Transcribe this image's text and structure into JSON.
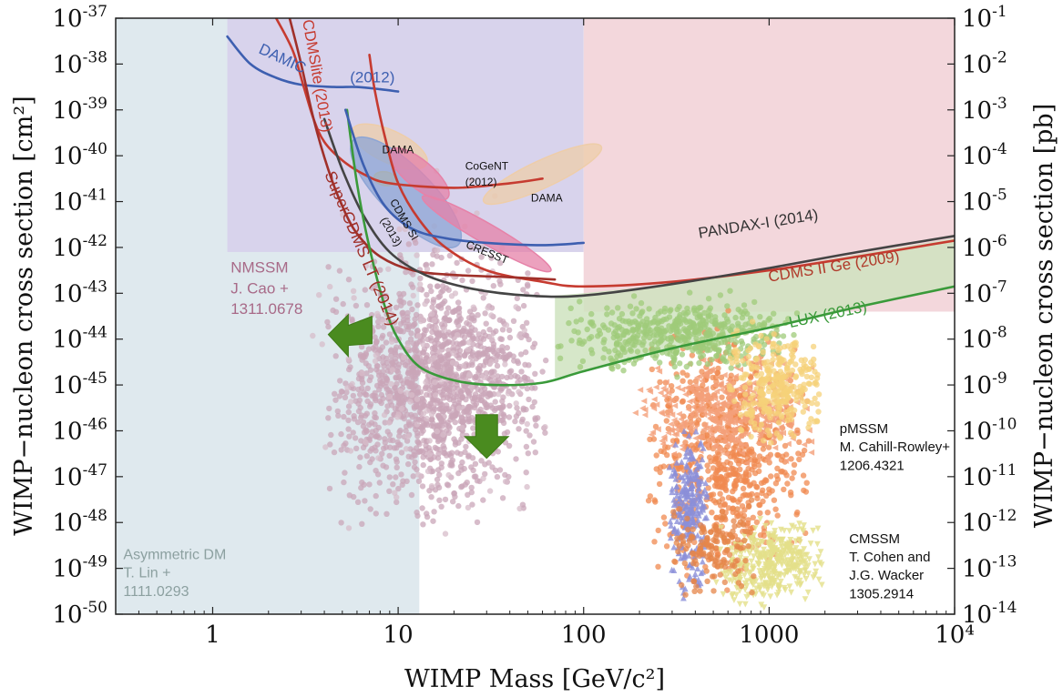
{
  "chart_data": {
    "type": "scatter",
    "xlabel": "WIMP Mass [GeV/c²]",
    "ylabel_left": "WIMP−nucleon cross section [cm²]",
    "ylabel_right": "WIMP−nucleon cross section [pb]",
    "x_scale": "log",
    "y_scale": "log",
    "xlim": [
      0.3,
      10000
    ],
    "ylim_cm2": [
      1e-50,
      1e-37
    ],
    "ylim_pb": [
      1e-14,
      0.1
    ],
    "x_ticks": [
      1,
      10,
      100,
      1000,
      10000
    ],
    "x_tick_labels": [
      "1",
      "10",
      "100",
      "1000",
      "10⁴"
    ],
    "y_ticks_left_exp": [
      -37,
      -38,
      -39,
      -40,
      -41,
      -42,
      -43,
      -44,
      -45,
      -46,
      -47,
      -48,
      -49,
      -50
    ],
    "y_ticks_right_exp": [
      -1,
      -2,
      -3,
      -4,
      -5,
      -6,
      -7,
      -8,
      -9,
      -10,
      -11,
      -12,
      -13,
      -14
    ],
    "tick_base": "10",
    "regions": [
      {
        "name": "asymmetric-dm-region",
        "color": "#dfe9ee",
        "x": [
          0.3,
          13
        ],
        "y_exp": [
          -50,
          -37
        ]
      },
      {
        "name": "excluded-low-mass-region",
        "color": "#d8d3ec",
        "x": [
          1.2,
          100
        ],
        "y_exp": [
          -42.1,
          -37
        ]
      },
      {
        "name": "excluded-high-mass-region",
        "color": "#f3d7dc",
        "x": [
          100,
          10000
        ],
        "y_exp": [
          -43.4,
          -37
        ]
      }
    ],
    "limit_curves": [
      {
        "name": "DAMIC (2012)",
        "color": "#3d5fb0",
        "points": [
          [
            1.2,
            -37.4
          ],
          [
            1.6,
            -38.0
          ],
          [
            2.2,
            -38.3
          ],
          [
            3,
            -38.45
          ],
          [
            4.5,
            -38.5
          ],
          [
            6,
            -38.5
          ],
          [
            8,
            -38.55
          ],
          [
            10,
            -38.6
          ]
        ]
      },
      {
        "name": "CDMSlite (2013)",
        "color": "#c63b30",
        "points": [
          [
            2.2,
            -37.0
          ],
          [
            2.7,
            -37.7
          ],
          [
            3.1,
            -38.5
          ],
          [
            3.5,
            -39.2
          ],
          [
            4,
            -39.7
          ],
          [
            5,
            -40.1
          ],
          [
            6.5,
            -40.4
          ],
          [
            9,
            -40.6
          ],
          [
            20,
            -40.7
          ],
          [
            40,
            -40.6
          ],
          [
            60,
            -40.5
          ]
        ]
      },
      {
        "name": "CDMS II Ge (2009)",
        "color": "#c63b30",
        "points": [
          [
            7,
            -37.8
          ],
          [
            7.5,
            -38.6
          ],
          [
            8.5,
            -39.6
          ],
          [
            10,
            -40.6
          ],
          [
            13,
            -41.4
          ],
          [
            18,
            -42.0
          ],
          [
            30,
            -42.5
          ],
          [
            60,
            -42.75
          ],
          [
            100,
            -42.85
          ],
          [
            300,
            -42.75
          ],
          [
            1000,
            -42.5
          ],
          [
            3000,
            -42.2
          ],
          [
            10000,
            -41.85
          ]
        ]
      },
      {
        "name": "SuperCDMS LT (2014)",
        "color": "#a0302a",
        "points": [
          [
            2.6,
            -37.0
          ],
          [
            3,
            -38.0
          ],
          [
            3.5,
            -39.2
          ],
          [
            4.2,
            -40.3
          ],
          [
            5,
            -41.1
          ],
          [
            6,
            -41.7
          ],
          [
            8,
            -42.2
          ],
          [
            12,
            -42.5
          ],
          [
            20,
            -42.6
          ],
          [
            40,
            -42.65
          ],
          [
            70,
            -42.7
          ]
        ]
      },
      {
        "name": "PANDAX-I (2014)",
        "color": "#444444",
        "points": [
          [
            4,
            -39.2
          ],
          [
            5,
            -40.3
          ],
          [
            6.5,
            -41.3
          ],
          [
            9,
            -42.1
          ],
          [
            14,
            -42.6
          ],
          [
            25,
            -42.9
          ],
          [
            50,
            -43.05
          ],
          [
            100,
            -43.05
          ],
          [
            300,
            -42.8
          ],
          [
            1000,
            -42.45
          ],
          [
            3000,
            -42.1
          ],
          [
            10000,
            -41.75
          ]
        ]
      },
      {
        "name": "LUX (2013)",
        "color": "#3a9a3a",
        "points": [
          [
            5.3,
            -39.0
          ],
          [
            6,
            -40.6
          ],
          [
            7,
            -42.0
          ],
          [
            8.5,
            -43.3
          ],
          [
            10,
            -44.0
          ],
          [
            13,
            -44.6
          ],
          [
            20,
            -44.9
          ],
          [
            33,
            -45.0
          ],
          [
            60,
            -44.95
          ],
          [
            100,
            -44.7
          ],
          [
            300,
            -44.2
          ],
          [
            1000,
            -43.75
          ],
          [
            3000,
            -43.3
          ],
          [
            10000,
            -42.85
          ]
        ]
      },
      {
        "name": "CDMS Si (2013) contour",
        "color": "#3d5fb0",
        "points": [
          [
            5.2,
            -39.0
          ],
          [
            6.5,
            -40.2
          ],
          [
            8.5,
            -41.1
          ],
          [
            12,
            -41.6
          ],
          [
            18,
            -41.8
          ],
          [
            30,
            -41.9
          ],
          [
            60,
            -41.95
          ],
          [
            100,
            -41.9
          ]
        ]
      }
    ],
    "signal_regions": [
      {
        "name": "DAMA",
        "color": "#eecda9",
        "center": [
          9,
          -39.8
        ],
        "rx_dex": 0.22,
        "ry_dex": 0.35,
        "rot": 25
      },
      {
        "name": "DAMA",
        "color": "#eecda9",
        "center": [
          60,
          -40.4
        ],
        "rx_dex": 0.35,
        "ry_dex": 0.3,
        "rot": -25
      },
      {
        "name": "CoGeNT",
        "color": "#f0d060",
        "center": [
          8.5,
          -40.5
        ],
        "rx_dex": 0.06,
        "ry_dex": 0.15,
        "rot": 10
      },
      {
        "name": "CDMS Si",
        "color": "#8da5d5",
        "center": [
          11,
          -40.8
        ],
        "rx_dex": 0.4,
        "ry_dex": 0.55,
        "rot": 45
      },
      {
        "name": "CRESST",
        "color": "#e682a8",
        "center": [
          30,
          -41.7
        ],
        "rx_dex": 0.4,
        "ry_dex": 0.22,
        "rot": 30
      },
      {
        "name": "CRESST",
        "color": "#e682a8",
        "center": [
          13,
          -40.4
        ],
        "rx_dex": 0.2,
        "ry_dex": 0.3,
        "rot": 40
      }
    ],
    "lux_band": {
      "color": "#cfe3bf",
      "upper": [
        [
          70,
          -43.05
        ],
        [
          100,
          -43.0
        ],
        [
          300,
          -42.8
        ],
        [
          1000,
          -42.5
        ],
        [
          3000,
          -42.15
        ],
        [
          10000,
          -41.8
        ]
      ],
      "lower": [
        [
          10000,
          -42.85
        ],
        [
          3000,
          -43.3
        ],
        [
          1000,
          -43.75
        ],
        [
          300,
          -44.2
        ],
        [
          100,
          -44.7
        ],
        [
          70,
          -44.85
        ]
      ]
    },
    "scatter_groups": [
      {
        "name": "NMSSM",
        "color": "#c9a6b8",
        "shape": "circle",
        "n": 1500,
        "x": [
          4,
          65
        ],
        "y_exp": [
          -48.5,
          -41.5
        ],
        "seed": 11
      },
      {
        "name": "NMSSM-sparse",
        "color": "#d7bcc9",
        "shape": "circle",
        "n": 150,
        "x": [
          3,
          70
        ],
        "y_exp": [
          -50,
          -39
        ],
        "seed": 12
      },
      {
        "name": "pMSSM-orange",
        "color": "#f08a50",
        "shape": "circle",
        "n": 700,
        "x": [
          200,
          1700
        ],
        "y_exp": [
          -49.8,
          -43.2
        ],
        "seed": 21
      },
      {
        "name": "pMSSM-orange-triangles",
        "color": "#f4a07a",
        "shape": "tri-left",
        "n": 400,
        "x": [
          180,
          1900
        ],
        "y_exp": [
          -47,
          -44.2
        ],
        "seed": 22
      },
      {
        "name": "pMSSM-green",
        "color": "#9fcb7a",
        "shape": "circle",
        "n": 500,
        "x": [
          70,
          1600
        ],
        "y_exp": [
          -44.9,
          -42.9
        ],
        "seed": 31
      },
      {
        "name": "pMSSM-yellow",
        "color": "#f5d27a",
        "shape": "circle",
        "n": 300,
        "x": [
          600,
          2200
        ],
        "y_exp": [
          -46.5,
          -43.5
        ],
        "seed": 32
      },
      {
        "name": "pMSSM-blue-triangles",
        "color": "#8b8ed8",
        "shape": "tri-up",
        "n": 260,
        "x": [
          280,
          480
        ],
        "y_exp": [
          -50,
          -45.5
        ],
        "seed": 41
      },
      {
        "name": "CMSSM-yellow-triangles",
        "color": "#e3e08a",
        "shape": "tri-down",
        "n": 380,
        "x": [
          500,
          2100
        ],
        "y_exp": [
          -50,
          -47.8
        ],
        "seed": 51
      },
      {
        "name": "pMSSM-orange-low",
        "color": "#e6854a",
        "shape": "circle",
        "n": 150,
        "x": [
          280,
          900
        ],
        "y_exp": [
          -50,
          -47
        ],
        "seed": 23
      }
    ],
    "arrows": [
      {
        "name": "left-arrow",
        "color": "#4a8b1f",
        "tip": [
          4.2,
          -43.9
        ],
        "dir": "left"
      },
      {
        "name": "down-arrow",
        "color": "#4a8b1f",
        "tip": [
          30,
          -46.6
        ],
        "dir": "down"
      }
    ],
    "labels": [
      {
        "text": "DAMIC",
        "color": "#3d5fb0",
        "pos": [
          1.75,
          -37.75
        ],
        "rot": 25,
        "size": 17
      },
      {
        "text": "(2012)",
        "color": "#3d5fb0",
        "pos": [
          5.5,
          -38.4
        ],
        "rot": 0,
        "size": 17
      },
      {
        "text": "CDMSlite (2013)",
        "color": "#c63b30",
        "pos": [
          3.05,
          -37.05
        ],
        "rot": 80,
        "size": 17
      },
      {
        "text": "SuperCDMS LT (2014)",
        "color": "#a0302a",
        "pos": [
          4.0,
          -40.4
        ],
        "rot": 67,
        "size": 18
      },
      {
        "text": "DAMA",
        "color": "#111111",
        "pos": [
          8.2,
          -39.95
        ],
        "rot": 0,
        "size": 12
      },
      {
        "text": "DAMA",
        "color": "#111111",
        "pos": [
          52,
          -41.0
        ],
        "rot": 0,
        "size": 12
      },
      {
        "text": "CoGeNT",
        "color": "#111111",
        "pos": [
          23,
          -40.3
        ],
        "rot": 0,
        "size": 12
      },
      {
        "text": "(2012)",
        "color": "#111111",
        "pos": [
          23,
          -40.65
        ],
        "rot": 0,
        "size": 12
      },
      {
        "text": "CDMS SI",
        "color": "#111111",
        "pos": [
          9,
          -41.0
        ],
        "rot": 60,
        "size": 12
      },
      {
        "text": "(2013)",
        "color": "#111111",
        "pos": [
          8,
          -41.4
        ],
        "rot": 60,
        "size": 12
      },
      {
        "text": "CRESST",
        "color": "#111111",
        "pos": [
          23,
          -42.0
        ],
        "rot": 22,
        "size": 12
      },
      {
        "text": "PANDAX-I (2014)",
        "color": "#333333",
        "pos": [
          420,
          -41.8
        ],
        "rot": -9,
        "size": 17
      },
      {
        "text": "CDMS II Ge (2009)",
        "color": "#b03a2a",
        "pos": [
          1000,
          -42.75
        ],
        "rot": -9,
        "size": 17
      },
      {
        "text": "LUX (2013)",
        "color": "#3a9a3a",
        "pos": [
          1300,
          -43.75
        ],
        "rot": -12,
        "size": 17
      },
      {
        "text": "NMSSM",
        "color": "#a86a88",
        "pos": [
          1.25,
          -42.55
        ],
        "rot": 0,
        "size": 17
      },
      {
        "text": "J. Cao +",
        "color": "#a86a88",
        "pos": [
          1.25,
          -43.0
        ],
        "rot": 0,
        "size": 17
      },
      {
        "text": "1311.0678",
        "color": "#a86a88",
        "pos": [
          1.25,
          -43.45
        ],
        "rot": 0,
        "size": 17
      },
      {
        "text": "pMSSM",
        "color": "#111111",
        "pos": [
          2400,
          -46.05
        ],
        "rot": 0,
        "size": 15
      },
      {
        "text": "M. Cahill-Rowley+",
        "color": "#111111",
        "pos": [
          2400,
          -46.45
        ],
        "rot": 0,
        "size": 15
      },
      {
        "text": "1206.4321",
        "color": "#111111",
        "pos": [
          2400,
          -46.85
        ],
        "rot": 0,
        "size": 15
      },
      {
        "text": "CMSSM",
        "color": "#111111",
        "pos": [
          2700,
          -48.45
        ],
        "rot": 0,
        "size": 15
      },
      {
        "text": "T. Cohen and",
        "color": "#111111",
        "pos": [
          2700,
          -48.85
        ],
        "rot": 0,
        "size": 15
      },
      {
        "text": "J.G. Wacker",
        "color": "#111111",
        "pos": [
          2700,
          -49.25
        ],
        "rot": 0,
        "size": 15
      },
      {
        "text": "1305.2914",
        "color": "#111111",
        "pos": [
          2700,
          -49.65
        ],
        "rot": 0,
        "size": 15
      },
      {
        "text": "Asymmetric DM",
        "color": "#8ca0a0",
        "pos": [
          0.33,
          -48.8
        ],
        "rot": 0,
        "size": 16
      },
      {
        "text": "T. Lin +",
        "color": "#8ca0a0",
        "pos": [
          0.33,
          -49.2
        ],
        "rot": 0,
        "size": 16
      },
      {
        "text": "1111.0293",
        "color": "#8ca0a0",
        "pos": [
          0.33,
          -49.6
        ],
        "rot": 0,
        "size": 16
      }
    ]
  }
}
